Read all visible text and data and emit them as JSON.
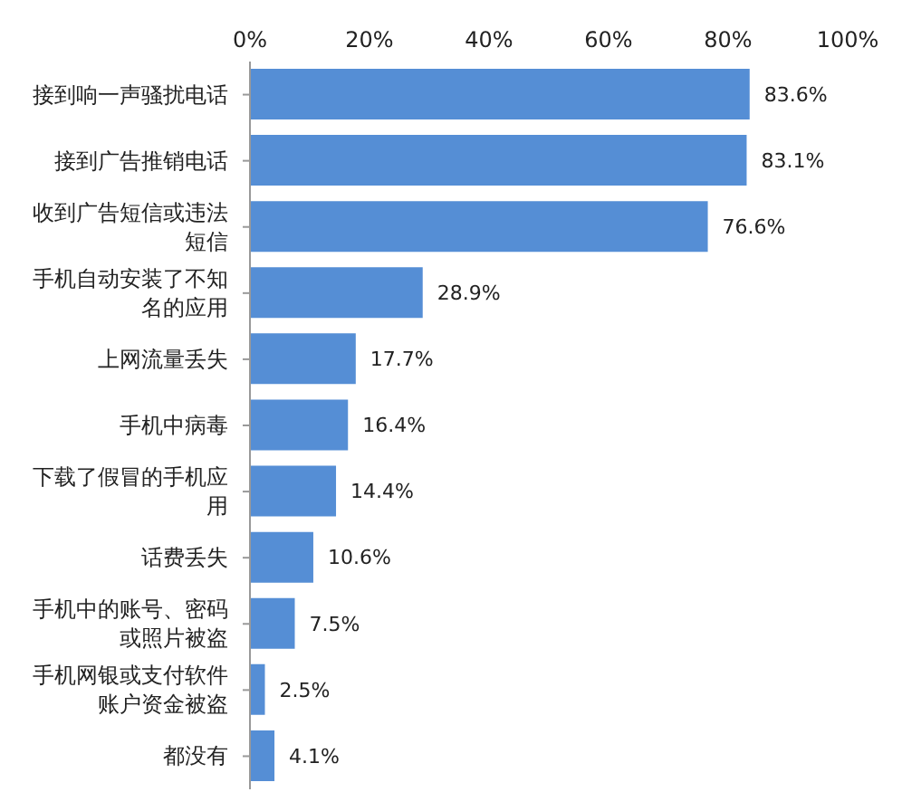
{
  "chart_data": {
    "type": "bar",
    "orientation": "horizontal",
    "categories": [
      "接到响一声骚扰电话",
      "接到广告推销电话",
      "收到广告短信或违法短信",
      "手机自动安装了不知名的应用",
      "上网流量丢失",
      "手机中病毒",
      "下载了假冒的手机应用",
      "话费丢失",
      "手机中的账号、密码或照片被盗",
      "手机网银或支付软件账户资金被盗",
      "都没有"
    ],
    "values": [
      83.6,
      83.1,
      76.6,
      28.9,
      17.7,
      16.4,
      14.4,
      10.6,
      7.5,
      2.5,
      4.1
    ],
    "value_labels": [
      "83.6%",
      "83.1%",
      "76.6%",
      "28.9%",
      "17.7%",
      "16.4%",
      "14.4%",
      "10.6%",
      "7.5%",
      "2.5%",
      "4.1%"
    ],
    "color": "#558ed5",
    "xlim": [
      0,
      100
    ],
    "xticks": [
      {
        "value": 0,
        "label": "0%"
      },
      {
        "value": 20,
        "label": "20%"
      },
      {
        "value": 40,
        "label": "40%"
      },
      {
        "value": 60,
        "label": "60%"
      },
      {
        "value": 80,
        "label": "80%"
      },
      {
        "value": 100,
        "label": "100%"
      }
    ],
    "grid": false,
    "legend": false
  }
}
